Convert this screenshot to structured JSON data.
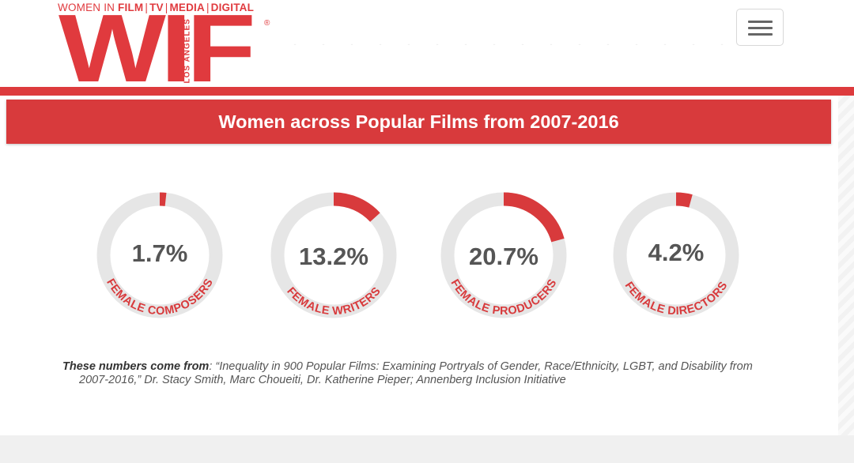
{
  "header": {
    "tagline": {
      "prefix": "WOMEN IN ",
      "items": [
        "FILM",
        "TV",
        "MEDIA",
        "DIGITAL"
      ],
      "separator": "|"
    },
    "logo": {
      "letters": "WIF",
      "subtitle": "LOS ANGELES",
      "registered": "®"
    },
    "menu_icon": "hamburger-icon"
  },
  "banner": {
    "title": "Women across Popular Films from 2007-2016"
  },
  "stats": [
    {
      "percent": "1.7%",
      "value": 1.7,
      "label": "FEMALE COMPOSERS"
    },
    {
      "percent": "13.2%",
      "value": 13.2,
      "label": "FEMALE WRITERS"
    },
    {
      "percent": "20.7%",
      "value": 20.7,
      "label": "FEMALE PRODUCERS"
    },
    {
      "percent": "4.2%",
      "value": 4.2,
      "label": "FEMALE DIRECTORS"
    }
  ],
  "source": {
    "lead": "These numbers come from",
    "text": ": “Inequality in 900 Popular Films: Examining Portryals of Gender, Race/Ethnicity, LGBT, and Disability from",
    "continuation": "2007-2016,” Dr. Stacy Smith, Marc Choueiti, Dr. Katherine Pieper; Annenberg Inclusion Initiative"
  },
  "colors": {
    "brand_red": "#e03a3e",
    "banner_red": "#d83a3c",
    "ring_track": "#e6e6e6",
    "ring_fill": "#d83a3c",
    "percent_text": "#555555"
  }
}
